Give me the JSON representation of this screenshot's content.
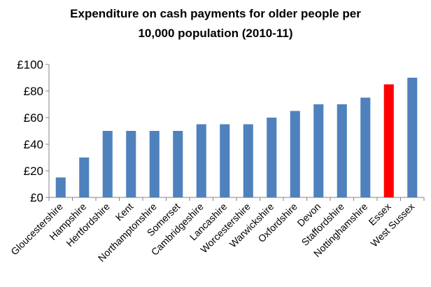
{
  "chart_data": {
    "type": "bar",
    "title_lines": [
      "Expenditure on cash payments for older people per",
      "10,000 population (2010-11)"
    ],
    "categories": [
      "Gloucestershire",
      "Hampshire",
      "Hertfordshire",
      "Kent",
      "Northamptonshire",
      "Somerset",
      "Cambridgeshire",
      "Lancashire",
      "Worcestershire",
      "Warwickshire",
      "Oxfordshire",
      "Devon",
      "Staffordshire",
      "Nottinghamshire",
      "Essex",
      "West Sussex"
    ],
    "values": [
      15,
      30,
      50,
      50,
      50,
      50,
      55,
      55,
      55,
      60,
      65,
      70,
      70,
      75,
      85,
      90
    ],
    "highlight": "Essex",
    "ylim": [
      0,
      100
    ],
    "yticks": [
      0,
      20,
      40,
      60,
      80,
      100
    ],
    "ytick_labels": [
      "£0",
      "£20",
      "£40",
      "£60",
      "£80",
      "£100"
    ],
    "colors": {
      "bar": "#4f81bd",
      "highlight": "#ff0000"
    },
    "grid": false,
    "legend": "none"
  }
}
